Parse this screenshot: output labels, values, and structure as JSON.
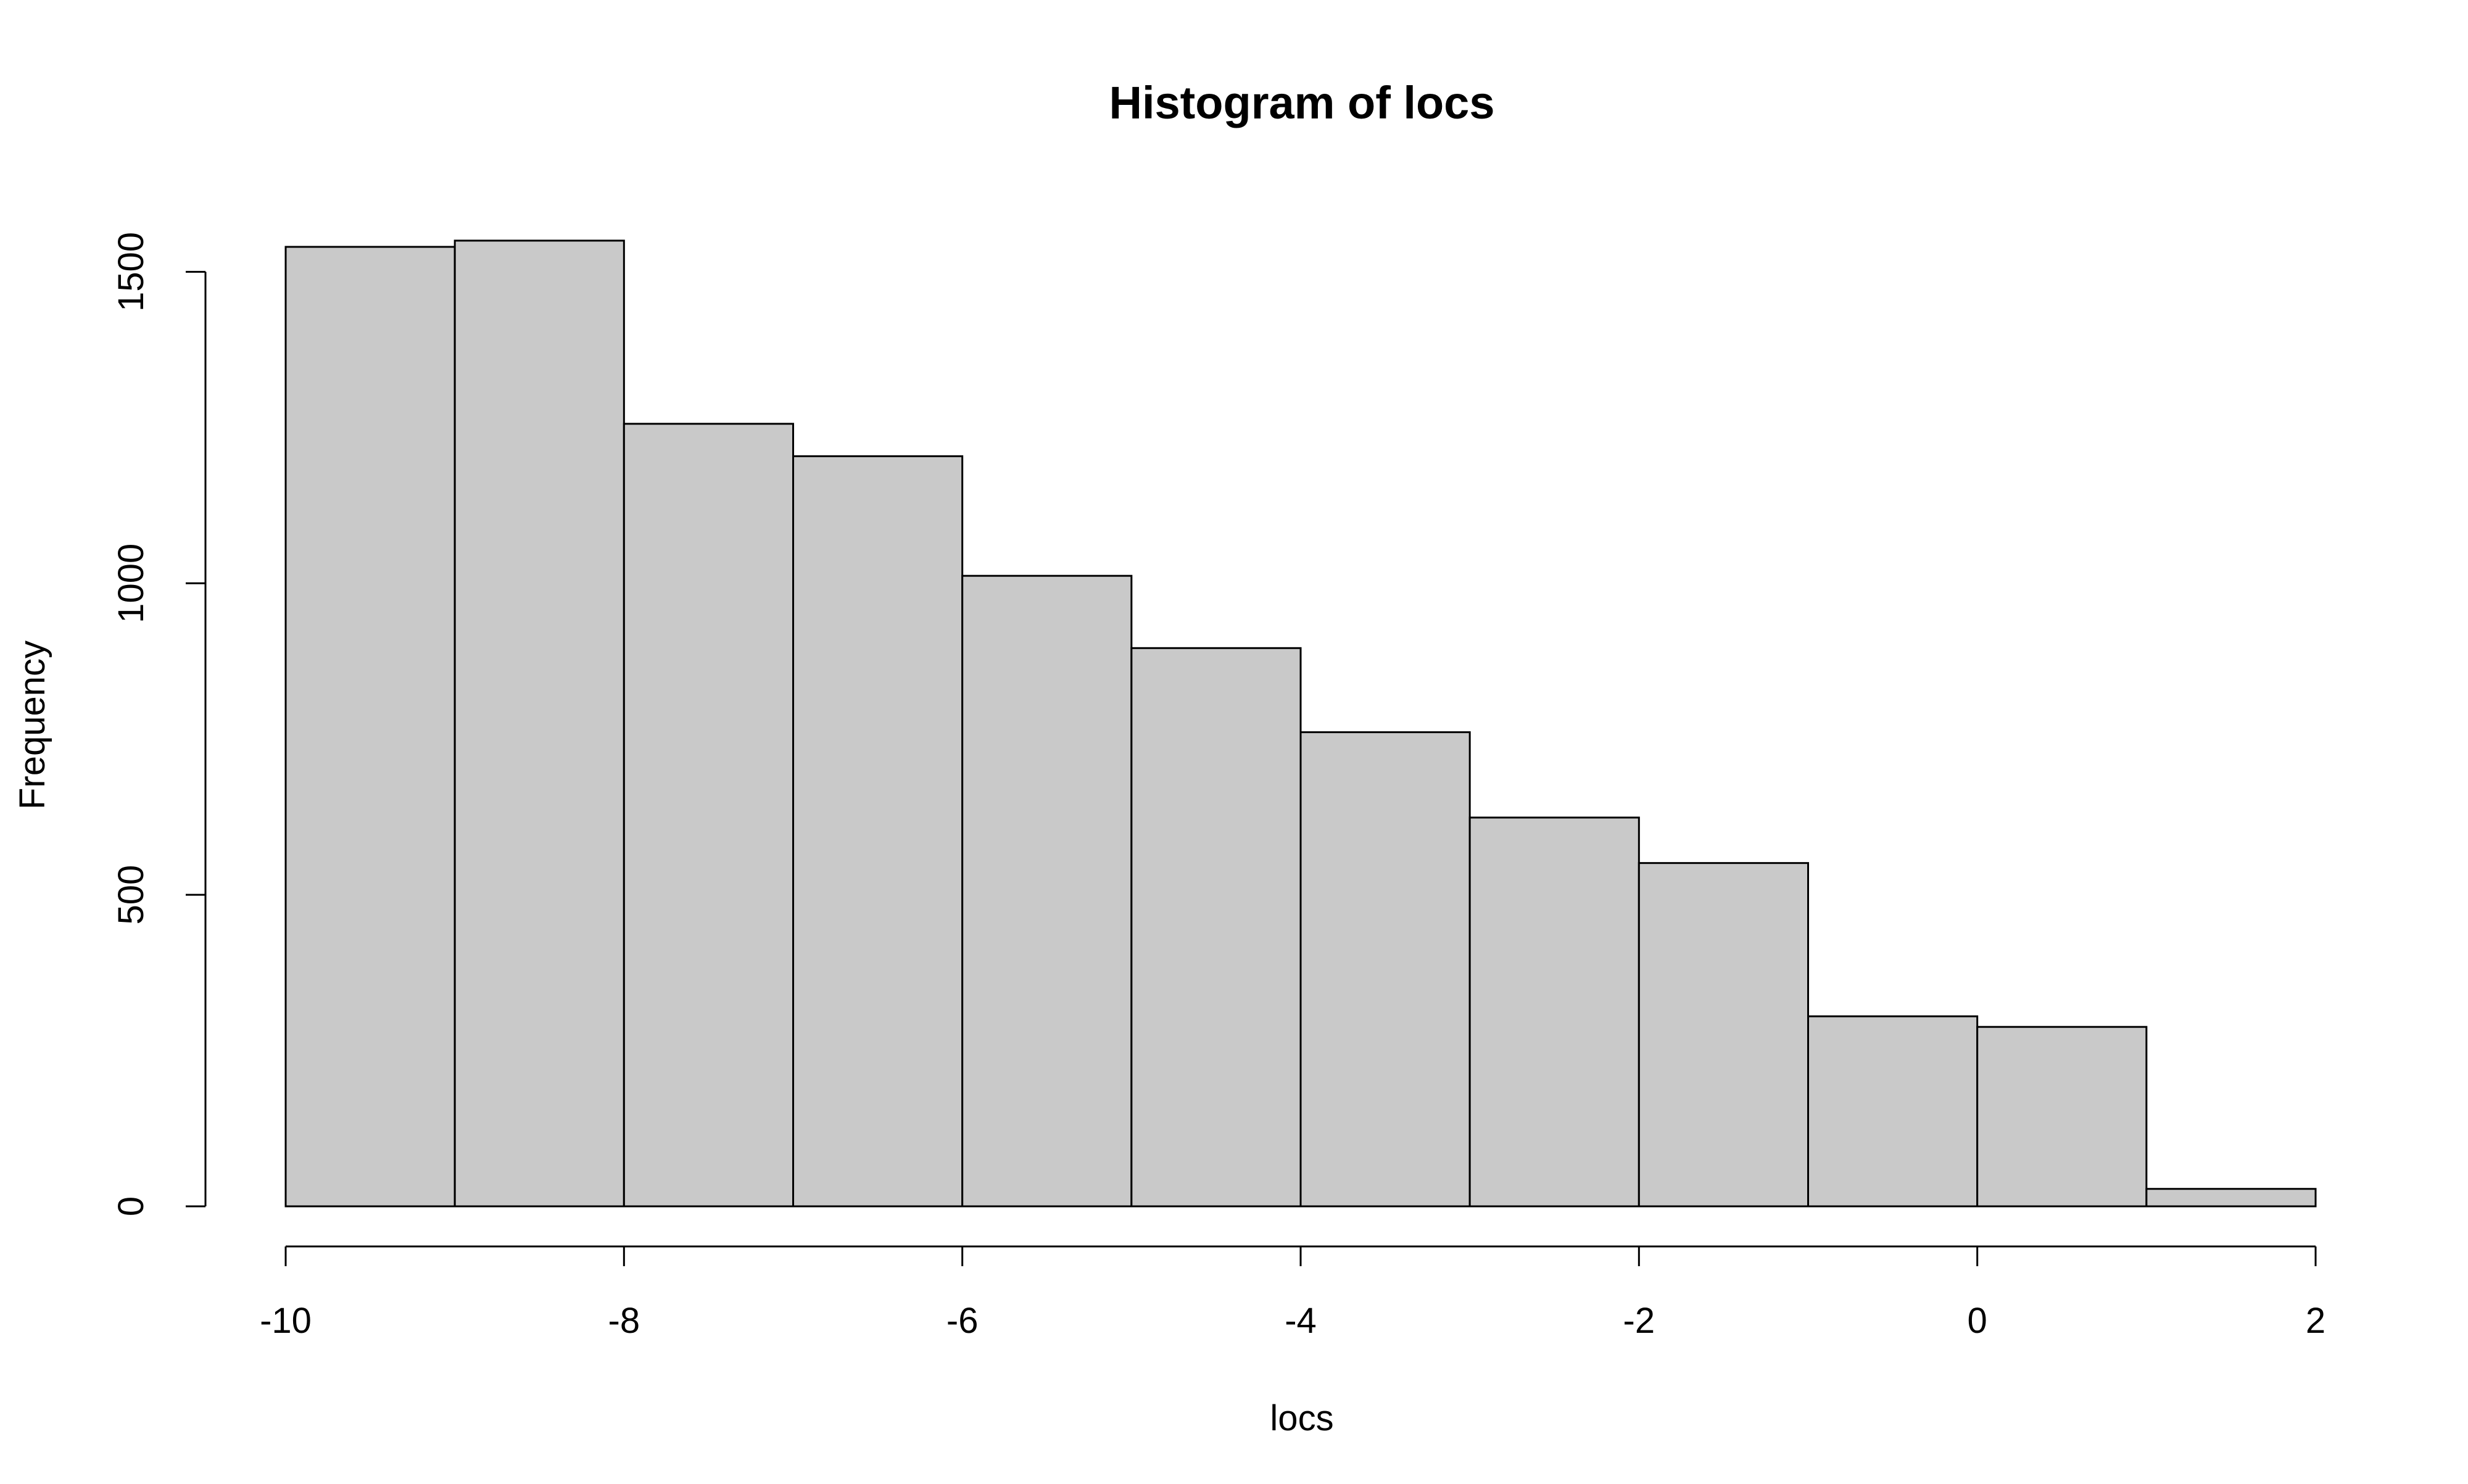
{
  "chart_data": {
    "type": "bar",
    "title": "Histogram of locs",
    "xlabel": "locs",
    "ylabel": "Frequency",
    "bin_edges": [
      -10,
      -9,
      -8,
      -7,
      -6,
      -5,
      -4,
      -3,
      -2,
      -1,
      0,
      1,
      2
    ],
    "values": [
      1540,
      1550,
      1256,
      1204,
      1012,
      896,
      761,
      624,
      551,
      305,
      288,
      28
    ],
    "xlim": [
      -10,
      2
    ],
    "ylim": [
      0,
      1550
    ],
    "x_ticks": [
      -10,
      -8,
      -6,
      -4,
      -2,
      0,
      2
    ],
    "x_tick_labels": [
      "-10",
      "-8",
      "-6",
      "-4",
      "-2",
      "0",
      "2"
    ],
    "y_ticks": [
      0,
      500,
      1000,
      1500
    ],
    "y_tick_labels": [
      "0",
      "500",
      "1000",
      "1500"
    ],
    "grid": false,
    "legend": "none",
    "bar_fill": "#c9c9c9",
    "bar_stroke": "#000000"
  }
}
